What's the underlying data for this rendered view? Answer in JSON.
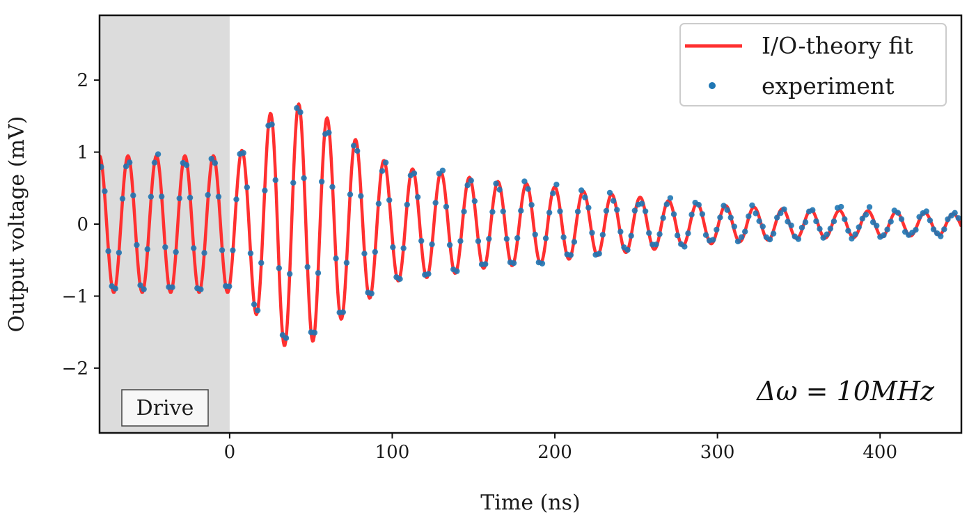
{
  "chart_data": {
    "type": "line",
    "title": "",
    "xlabel": "Time (ns)",
    "ylabel": "Output voltage (mV)",
    "xlim": [
      -80,
      450
    ],
    "ylim": [
      -2.9,
      2.9
    ],
    "xticks": [
      0,
      100,
      200,
      300,
      400
    ],
    "yticks": [
      -2,
      -1,
      0,
      1,
      2
    ],
    "xtick_labels": [
      "0",
      "100",
      "200",
      "300",
      "400"
    ],
    "ytick_labels": [
      "−2",
      "−1",
      "0",
      "1",
      "2"
    ],
    "grid": false,
    "legend_position": "top-right",
    "legend": [
      "I/O-theory fit",
      "experiment"
    ],
    "shaded_region": {
      "x": [
        -80,
        0
      ],
      "label": "Drive",
      "color": "#dcdcdc"
    },
    "annotation": "Δω = 10MHz",
    "oscillation_period_ns": 17.5,
    "series": [
      {
        "name": "I/O-theory fit",
        "style": "line",
        "color": "#ff3030",
        "envelope": [
          [
            -80,
            0.95
          ],
          [
            0,
            0.95
          ],
          [
            10,
            1.05
          ],
          [
            30,
            1.7
          ],
          [
            50,
            1.65
          ],
          [
            70,
            1.3
          ],
          [
            100,
            0.8
          ],
          [
            130,
            0.72
          ],
          [
            160,
            0.6
          ],
          [
            190,
            0.55
          ],
          [
            220,
            0.45
          ],
          [
            250,
            0.38
          ],
          [
            280,
            0.3
          ],
          [
            310,
            0.25
          ],
          [
            350,
            0.2
          ],
          [
            400,
            0.18
          ],
          [
            450,
            0.14
          ]
        ]
      },
      {
        "name": "experiment",
        "style": "scatter",
        "color": "#1f77b4",
        "points_per_period": 8,
        "noise_mV": 0.06
      }
    ]
  }
}
